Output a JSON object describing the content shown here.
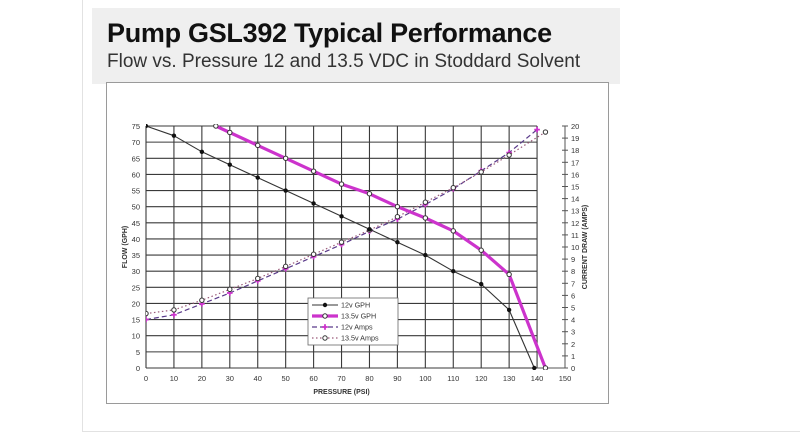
{
  "header": {
    "title": "Pump GSL392 Typical Performance",
    "subtitle": "Flow vs. Pressure 12 and 13.5 VDC in Stoddard Solvent"
  },
  "chart_data": {
    "type": "line",
    "title": "Pump GSL392 Typical Performance",
    "subtitle": "Flow vs. Pressure 12 and 13.5 VDC in Stoddard Solvent",
    "xlabel": "PRESSURE (PSI)",
    "ylabel": "FLOW (GPH)",
    "y2label": "CURRENT DRAW (AMPS)",
    "xlim": [
      0,
      150
    ],
    "ylim": [
      0,
      75
    ],
    "y2lim": [
      0,
      20
    ],
    "x_ticks": [
      0,
      10,
      20,
      30,
      40,
      50,
      60,
      70,
      80,
      90,
      100,
      110,
      120,
      130,
      140,
      150
    ],
    "y_ticks": [
      0,
      5,
      10,
      15,
      20,
      25,
      30,
      35,
      40,
      45,
      50,
      55,
      60,
      65,
      70,
      75
    ],
    "y2_ticks": [
      0,
      1,
      2,
      3,
      4,
      5,
      6,
      7,
      8,
      9,
      10,
      11,
      12,
      13,
      14,
      15,
      16,
      17,
      18,
      19,
      20
    ],
    "grid": true,
    "legend_position": "inside-lower-center",
    "series": [
      {
        "name": "12v GPH",
        "axis": "left",
        "color": "#333333",
        "style": "solid-thin",
        "marker": "filled-circle",
        "x": [
          0,
          10,
          20,
          30,
          40,
          50,
          60,
          70,
          80,
          90,
          100,
          110,
          120,
          130,
          139
        ],
        "values": [
          75,
          72,
          67,
          63,
          59,
          55,
          51,
          47,
          43,
          39,
          35,
          30,
          26,
          18,
          0
        ]
      },
      {
        "name": "13.5v GPH",
        "axis": "left",
        "color": "#cc33cc",
        "style": "solid-thick",
        "marker": "open-circle",
        "x": [
          25,
          30,
          40,
          50,
          60,
          70,
          80,
          90,
          100,
          110,
          120,
          130,
          143
        ],
        "values": [
          75,
          73,
          69,
          65,
          61,
          57,
          54,
          50,
          46.5,
          42.5,
          36.5,
          29,
          0
        ]
      },
      {
        "name": "12v Amps",
        "axis": "right",
        "color": "#5a3a8a",
        "marker_color": "#cc33cc",
        "style": "dashed",
        "marker": "plus",
        "x": [
          0,
          10,
          20,
          30,
          40,
          50,
          60,
          70,
          80,
          90,
          100,
          110,
          120,
          130,
          140
        ],
        "values": [
          4.0,
          4.4,
          5.3,
          6.2,
          7.2,
          8.2,
          9.2,
          10.2,
          11.3,
          12.3,
          13.5,
          14.8,
          16.3,
          17.8,
          19.7
        ]
      },
      {
        "name": "13.5v Amps",
        "axis": "right",
        "color": "#9a5a7a",
        "style": "dotted",
        "marker": "open-circle",
        "x": [
          0,
          10,
          20,
          30,
          40,
          50,
          60,
          70,
          80,
          90,
          100,
          110,
          120,
          130,
          143
        ],
        "values": [
          4.5,
          4.8,
          5.6,
          6.5,
          7.4,
          8.4,
          9.4,
          10.4,
          11.4,
          12.5,
          13.7,
          14.9,
          16.2,
          17.6,
          19.5
        ]
      }
    ]
  }
}
